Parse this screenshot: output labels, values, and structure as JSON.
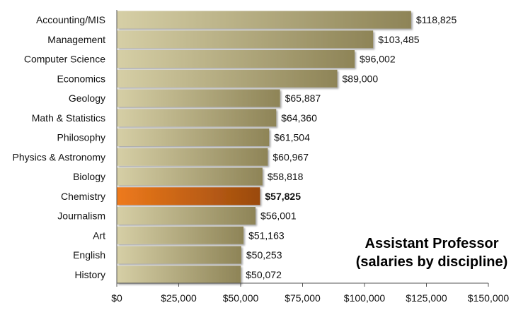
{
  "chart_data": {
    "type": "bar",
    "orientation": "horizontal",
    "title": "Assistant Professor",
    "subtitle": "(salaries by discipline)",
    "categories": [
      "Accounting/MIS",
      "Management",
      "Computer Science",
      "Economics",
      "Geology",
      "Math & Statistics",
      "Philosophy",
      "Physics & Astronomy",
      "Biology",
      "Chemistry",
      "Journalism",
      "Art",
      "English",
      "History"
    ],
    "values": [
      118825,
      103485,
      96002,
      89000,
      65887,
      64360,
      61504,
      60967,
      58818,
      57825,
      56001,
      51163,
      50253,
      50072
    ],
    "value_labels": [
      "$118,825",
      "$103,485",
      "$96,002",
      "$89,000",
      "$65,887",
      "$64,360",
      "$61,504",
      "$60,967",
      "$58,818",
      "$57,825",
      "$56,001",
      "$51,163",
      "$50,253",
      "$50,072"
    ],
    "highlight_category": "Chemistry",
    "x_ticks": [
      0,
      25000,
      50000,
      75000,
      100000,
      125000,
      150000
    ],
    "x_tick_labels": [
      "$0",
      "$25,000",
      "$50,000",
      "$75,000",
      "$100,000",
      "$125,000",
      "$150,000"
    ],
    "xlim": [
      0,
      150000
    ],
    "grid": false,
    "colors": {
      "bar_light": "#d6cfa6",
      "bar_dark": "#8e8457",
      "highlight_light": "#ee7a1c",
      "highlight_dark": "#9a4a0e"
    }
  }
}
